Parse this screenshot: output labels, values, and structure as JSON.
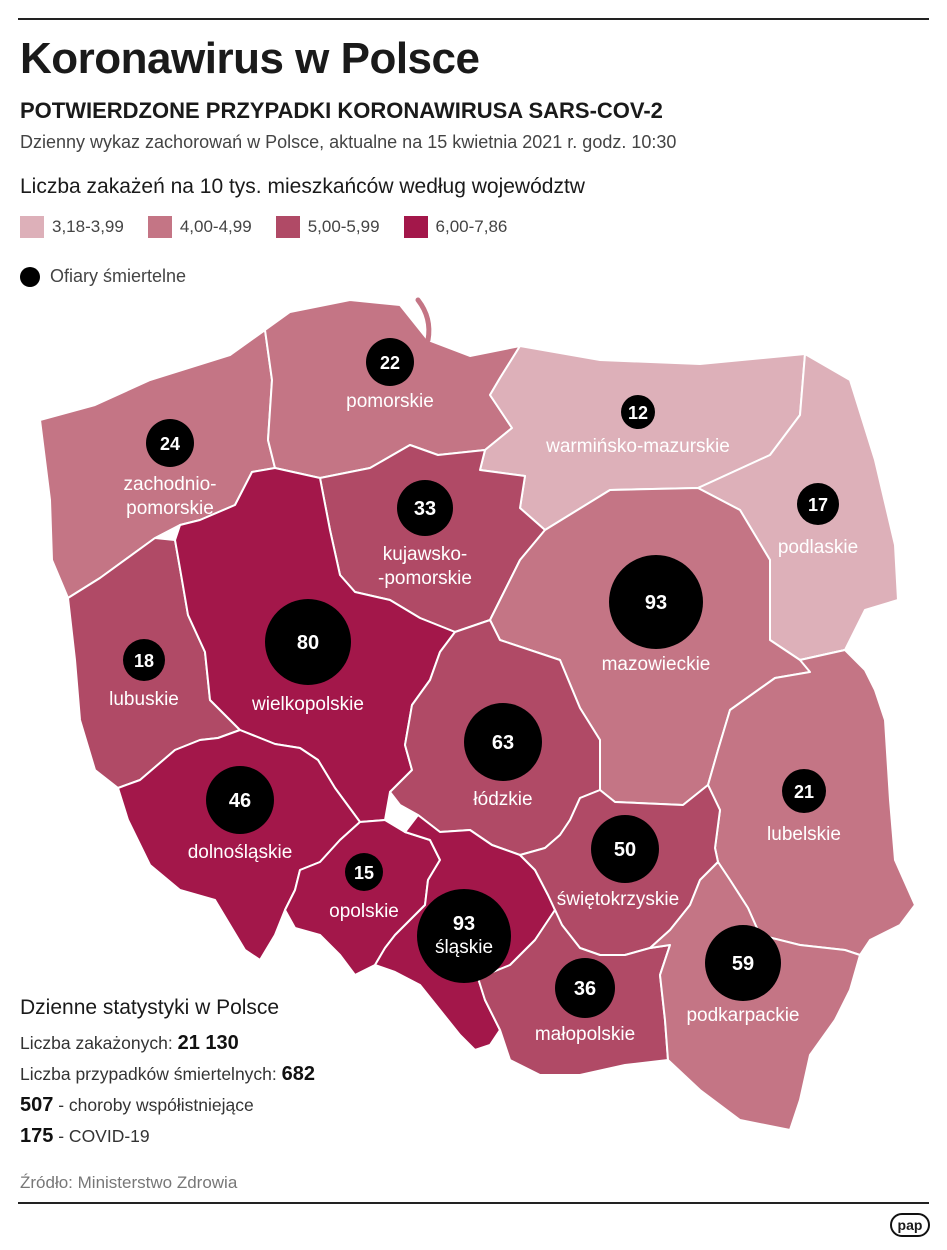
{
  "header": {
    "title": "Koronawirus w Polsce",
    "subtitle": "POTWIERDZONE PRZYPADKI KORONAWIRUSA SARS-COV-2",
    "description": "Dzienny wykaz zachorowań w Polsce, aktualne na 15 kwietnia 2021 r. godz. 10:30"
  },
  "legend": {
    "title": "Liczba zakażeń na 10 tys. mieszkańców według województw",
    "classes": [
      {
        "label": "3,18-3,99",
        "color": "#ddb0b9"
      },
      {
        "label": "4,00-4,99",
        "color": "#c47585"
      },
      {
        "label": "5,00-5,99",
        "color": "#b04a66"
      },
      {
        "label": "6,00-7,86",
        "color": "#a3174a"
      }
    ],
    "deaths_label": "Ofiary śmiertelne"
  },
  "regions": [
    {
      "id": "zachodniopomorskie",
      "name_lines": [
        "zachodnio-",
        "pomorskie"
      ],
      "class": 1,
      "deaths": 24
    },
    {
      "id": "pomorskie",
      "name_lines": [
        "pomorskie"
      ],
      "class": 1,
      "deaths": 22
    },
    {
      "id": "warminsko-mazurskie",
      "name_lines": [
        "warmińsko-mazurskie"
      ],
      "class": 0,
      "deaths": 12
    },
    {
      "id": "podlaskie",
      "name_lines": [
        "podlaskie"
      ],
      "class": 0,
      "deaths": 17
    },
    {
      "id": "kujawsko-pomorskie",
      "name_lines": [
        "kujawsko-",
        "-pomorskie"
      ],
      "class": 2,
      "deaths": 33
    },
    {
      "id": "lubuskie",
      "name_lines": [
        "lubuskie"
      ],
      "class": 2,
      "deaths": 18
    },
    {
      "id": "wielkopolskie",
      "name_lines": [
        "wielkopolskie"
      ],
      "class": 3,
      "deaths": 80
    },
    {
      "id": "mazowieckie",
      "name_lines": [
        "mazowieckie"
      ],
      "class": 1,
      "deaths": 93
    },
    {
      "id": "lodzkie",
      "name_lines": [
        "łódzkie"
      ],
      "class": 2,
      "deaths": 63
    },
    {
      "id": "lubelskie",
      "name_lines": [
        "lubelskie"
      ],
      "class": 1,
      "deaths": 21
    },
    {
      "id": "dolnoslaskie",
      "name_lines": [
        "dolnośląskie"
      ],
      "class": 3,
      "deaths": 46
    },
    {
      "id": "opolskie",
      "name_lines": [
        "opolskie"
      ],
      "class": 3,
      "deaths": 15
    },
    {
      "id": "slaskie",
      "name_lines": [
        "śląskie"
      ],
      "class": 3,
      "deaths": 93
    },
    {
      "id": "swietokrzyskie",
      "name_lines": [
        "świętokrzyskie"
      ],
      "class": 2,
      "deaths": 50
    },
    {
      "id": "malopolskie",
      "name_lines": [
        "małopolskie"
      ],
      "class": 2,
      "deaths": 36
    },
    {
      "id": "podkarpackie",
      "name_lines": [
        "podkarpackie"
      ],
      "class": 1,
      "deaths": 59
    }
  ],
  "stats": {
    "title": "Dzienne statystyki w Polsce",
    "infections_label": "Liczba zakażonych: ",
    "infections_value": "21 130",
    "deaths_label": "Liczba przypadków śmiertelnych: ",
    "deaths_value": "682",
    "comorbid_value": "507",
    "comorbid_label": " - choroby współistniejące",
    "covid_value": "175",
    "covid_label": " - COVID-19"
  },
  "source": "Źródło: Ministerstwo Zdrowia",
  "logo": "pap"
}
